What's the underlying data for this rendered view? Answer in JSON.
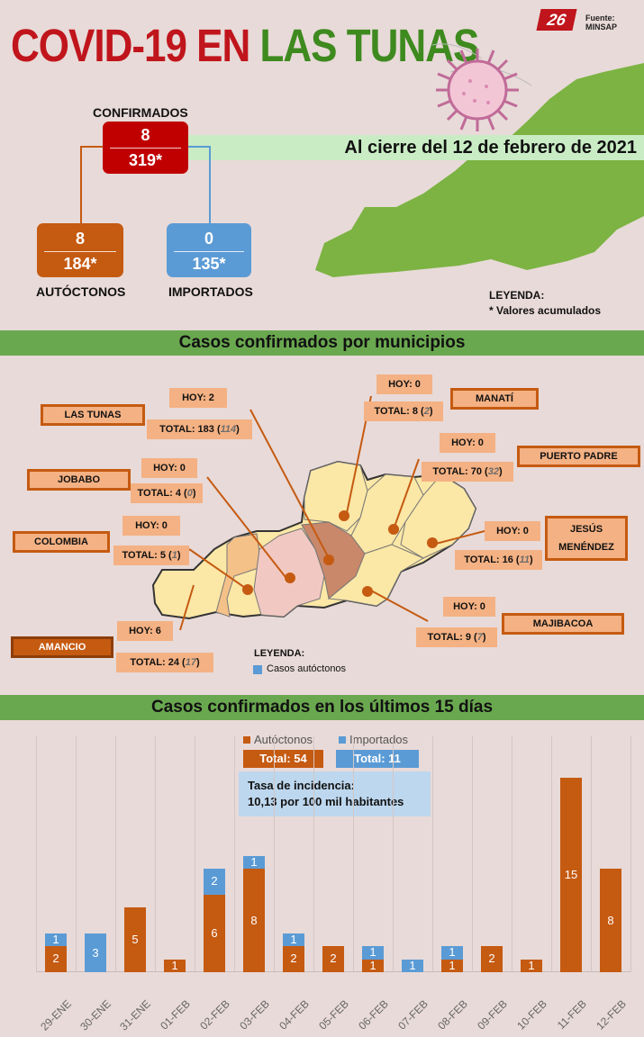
{
  "header": {
    "title_part1": "COVID-19 EN",
    "title_part2": "LAS TUNAS",
    "logo": "26",
    "source": "Fuente: MINSAP",
    "date_banner": "Al cierre del 12 de febrero de 2021"
  },
  "summary": {
    "confirmados": {
      "label": "CONFIRMADOS",
      "today": "8",
      "total": "319*"
    },
    "autoctonos": {
      "label": "AUTÓCTONOS",
      "today": "8",
      "total": "184*"
    },
    "importados": {
      "label": "IMPORTADOS",
      "today": "0",
      "total": "135*"
    },
    "legend_title": "LEYENDA:",
    "legend_text": "* Valores acumulados"
  },
  "municipios": {
    "section_title": "Casos confirmados por municipios",
    "legend_title": "LEYENDA:",
    "legend_text": "Casos autóctonos",
    "items": [
      {
        "name": "LAS TUNAS",
        "hoy": "HOY: 2",
        "total_prefix": "TOTAL: 183 (",
        "autoctonos": "114",
        "total_suffix": ")"
      },
      {
        "name": "MANATÍ",
        "hoy": "HOY: 0",
        "total_prefix": "TOTAL: 8 (",
        "autoctonos": "2",
        "total_suffix": ")"
      },
      {
        "name": "PUERTO  PADRE",
        "hoy": "HOY: 0",
        "total_prefix": "TOTAL: 70 (",
        "autoctonos": "32",
        "total_suffix": ")"
      },
      {
        "name": "JOBABO",
        "hoy": "HOY: 0",
        "total_prefix": "TOTAL: 4 (",
        "autoctonos": "0",
        "total_suffix": ")"
      },
      {
        "name": "COLOMBIA",
        "hoy": "HOY: 0",
        "total_prefix": "TOTAL: 5 (",
        "autoctonos": "1",
        "total_suffix": ")"
      },
      {
        "name": "JESÚS MENÉNDEZ",
        "hoy": "HOY: 0",
        "total_prefix": "TOTAL: 16 (",
        "autoctonos": "11",
        "total_suffix": ")"
      },
      {
        "name": "MAJIBACOA",
        "hoy": "HOY: 0",
        "total_prefix": "TOTAL: 9 (",
        "autoctonos": "7",
        "total_suffix": ")"
      },
      {
        "name": "AMANCIO",
        "hoy": "HOY: 6",
        "total_prefix": "TOTAL: 24 (",
        "autoctonos": "17",
        "total_suffix": ")"
      }
    ]
  },
  "chart_section": {
    "title": "Casos confirmados en los últimos 15 días",
    "legend_autoctonos": "Autóctonos",
    "legend_importados": "Importados",
    "total_autoctonos": "Total: 54",
    "total_importados": "Total: 11",
    "tasa_line1": "Tasa de incidencia:",
    "tasa_line2": "10,13 por 100 mil habitantes"
  },
  "colors": {
    "autoctonos": "#c55a11",
    "importados": "#5b9bd5",
    "green": "#6aa84f",
    "red": "#c0151c"
  },
  "chart_data": {
    "type": "bar",
    "stacked": true,
    "title": "Casos confirmados en los últimos 15 días",
    "categories": [
      "29-ENE",
      "30-ENE",
      "31-ENE",
      "01-FEB",
      "02-FEB",
      "03-FEB",
      "04-FEB",
      "05-FEB",
      "06-FEB",
      "07-FEB",
      "08-FEB",
      "09-FEB",
      "10-FEB",
      "11-FEB",
      "12-FEB"
    ],
    "series": [
      {
        "name": "Autóctonos",
        "values": [
          2,
          0,
          5,
          1,
          6,
          8,
          2,
          2,
          1,
          0,
          1,
          2,
          1,
          15,
          8
        ]
      },
      {
        "name": "Importados",
        "values": [
          1,
          3,
          0,
          0,
          2,
          1,
          1,
          0,
          1,
          1,
          1,
          0,
          0,
          0,
          0
        ]
      }
    ],
    "ylim": [
      0,
      16
    ],
    "grid": true,
    "legend": "top"
  }
}
